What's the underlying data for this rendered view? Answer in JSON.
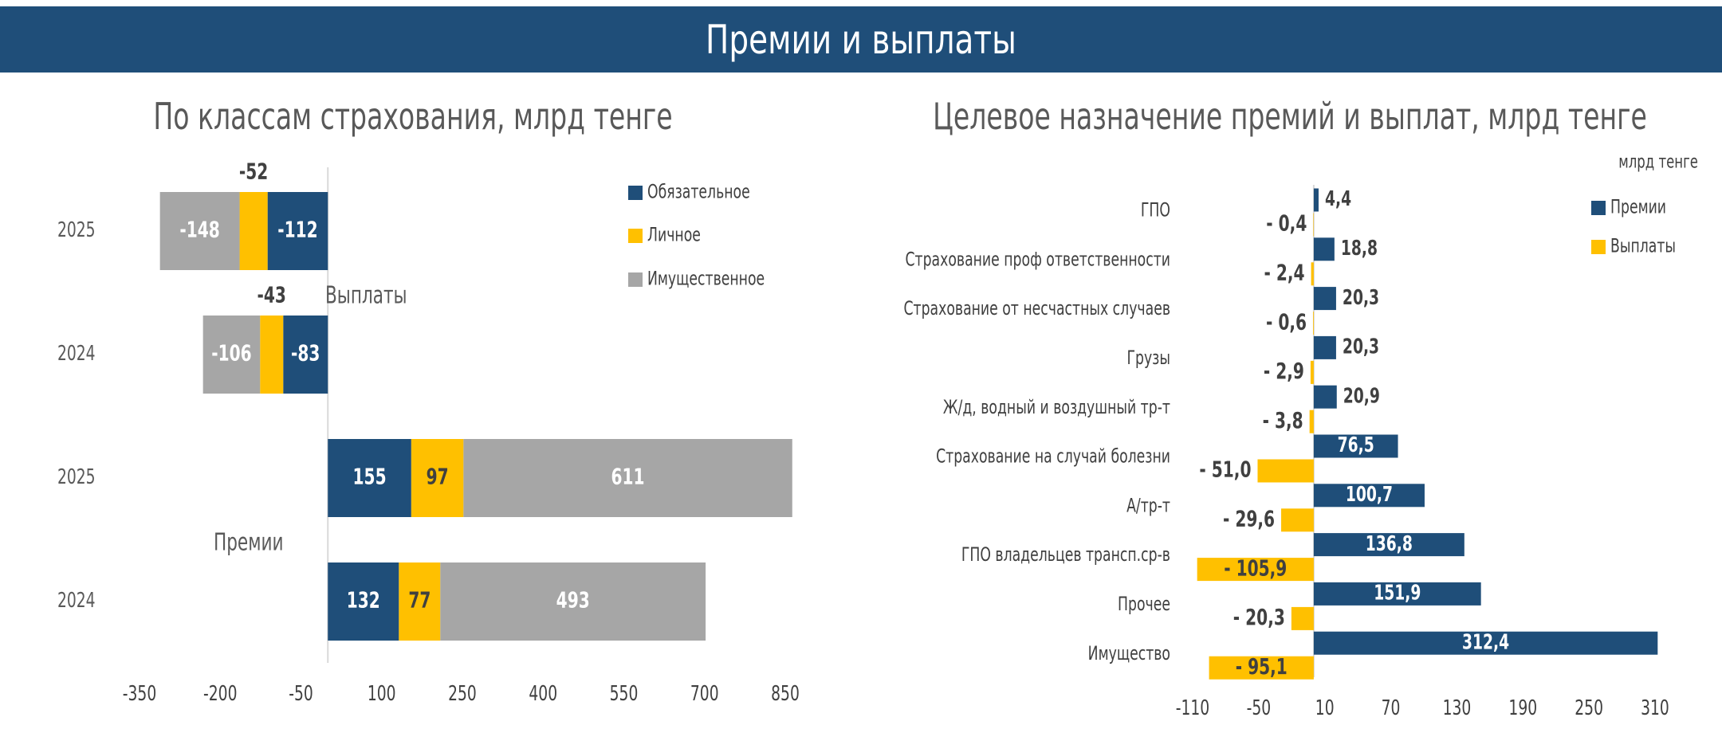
{
  "page": {
    "banner_title": "Премии и выплаты"
  },
  "colors": {
    "mandatory": "#1f4e79",
    "personal": "#ffc000",
    "property": "#a6a6a6",
    "premiums": "#1f4e79",
    "payouts": "#ffc000"
  },
  "chart_data": [
    {
      "type": "bar",
      "orientation": "horizontal",
      "stacked": true,
      "title": "По классам страхования, млрд тенге",
      "rows": [
        {
          "label": "2025",
          "group": "Выплаты",
          "values": {
            "Обязательное": -112,
            "Личное": -52,
            "Имущественное": -148
          }
        },
        {
          "label": "2024",
          "group": "Выплаты",
          "values": {
            "Обязательное": -83,
            "Личное": -43,
            "Имущественное": -106
          }
        },
        {
          "label": "2025",
          "group": "Премии",
          "values": {
            "Обязательное": 155,
            "Личное": 97,
            "Имущественное": 611
          }
        },
        {
          "label": "2024",
          "group": "Премии",
          "values": {
            "Обязательное": 132,
            "Личное": 77,
            "Имущественное": 493
          }
        }
      ],
      "series": [
        {
          "name": "Обязательное",
          "color": "#1f4e79"
        },
        {
          "name": "Личное",
          "color": "#ffc000"
        },
        {
          "name": "Имущественное",
          "color": "#a6a6a6"
        }
      ],
      "group_labels": [
        "Выплаты",
        "Премии"
      ],
      "xticks": [
        -350,
        -200,
        -50,
        100,
        250,
        400,
        550,
        700,
        850
      ],
      "xlim": [
        -350,
        850
      ],
      "legend": "top-right",
      "grid": false
    },
    {
      "type": "bar",
      "orientation": "horizontal",
      "title": "Целевое назначение премий и выплат, млрд тенге",
      "unit_note": "млрд тенге",
      "categories": [
        "ГПО",
        "Страхование проф ответственности",
        "Страхование от несчастных случаев",
        "Грузы",
        "Ж/д, водный и воздушный тр-т",
        "Страхование на случай болезни",
        "А/тр-т",
        "ГПО владельцев трансп.ср-в",
        "Прочее",
        "Имущество"
      ],
      "series": [
        {
          "name": "Премии",
          "color": "#1f4e79",
          "values": [
            4.4,
            18.8,
            20.3,
            20.3,
            20.9,
            76.5,
            100.7,
            136.8,
            151.9,
            312.4
          ],
          "labels": [
            "4,4",
            "18,8",
            "20,3",
            "20,3",
            "20,9",
            "76,5",
            "100,7",
            "136,8",
            "151,9",
            "312,4"
          ]
        },
        {
          "name": "Выплаты",
          "color": "#ffc000",
          "values": [
            -0.4,
            -2.4,
            -0.6,
            -2.9,
            -3.8,
            -51.0,
            -29.6,
            -105.9,
            -20.3,
            -95.1
          ],
          "labels": [
            "- 0,4",
            "- 2,4",
            "- 0,6",
            "- 2,9",
            "- 3,8",
            "- 51,0",
            "- 29,6",
            "- 105,9",
            "- 20,3",
            "- 95,1"
          ]
        }
      ],
      "xticks": [
        -110,
        -50,
        10,
        70,
        130,
        190,
        250,
        310
      ],
      "xlim": [
        -110,
        310
      ],
      "legend": "top-right",
      "grid": false
    }
  ]
}
